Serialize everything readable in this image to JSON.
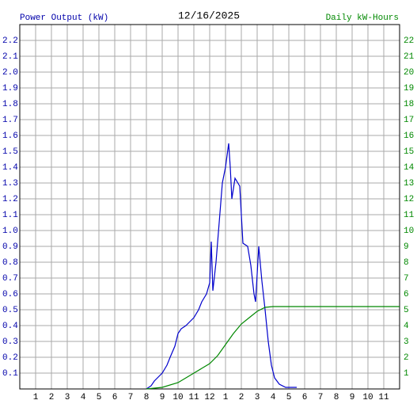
{
  "chart_data": {
    "type": "line",
    "title": "12/16/2025",
    "y_label": "Power Output (kW)",
    "y2_label": "Daily kW-Hours",
    "xlim": [
      0,
      24
    ],
    "xticks": [
      {
        "value": 1,
        "label": "1"
      },
      {
        "value": 2,
        "label": "2"
      },
      {
        "value": 3,
        "label": "3"
      },
      {
        "value": 4,
        "label": "4"
      },
      {
        "value": 5,
        "label": "5"
      },
      {
        "value": 6,
        "label": "6"
      },
      {
        "value": 7,
        "label": "7"
      },
      {
        "value": 8,
        "label": "8"
      },
      {
        "value": 9,
        "label": "9"
      },
      {
        "value": 10,
        "label": "10"
      },
      {
        "value": 11,
        "label": "11"
      },
      {
        "value": 12,
        "label": "12"
      },
      {
        "value": 13,
        "label": "1"
      },
      {
        "value": 14,
        "label": "2"
      },
      {
        "value": 15,
        "label": "3"
      },
      {
        "value": 16,
        "label": "4"
      },
      {
        "value": 17,
        "label": "5"
      },
      {
        "value": 18,
        "label": "6"
      },
      {
        "value": 19,
        "label": "7"
      },
      {
        "value": 20,
        "label": "8"
      },
      {
        "value": 21,
        "label": "9"
      },
      {
        "value": 22,
        "label": "10"
      },
      {
        "value": 23,
        "label": "11"
      }
    ],
    "ylim": [
      0,
      2.3
    ],
    "yticks": [
      0.1,
      0.2,
      0.3,
      0.4,
      0.5,
      0.6,
      0.7,
      0.8,
      0.9,
      {
        "value": 1,
        "label": "1.0"
      },
      1.1,
      1.2,
      1.3,
      1.4,
      1.5,
      1.6,
      1.7,
      1.8,
      1.9,
      {
        "value": 2,
        "label": "2.0"
      },
      2.1,
      2.2
    ],
    "y2lim": [
      0,
      23
    ],
    "y2ticks": [
      1,
      2,
      3,
      4,
      5,
      6,
      7,
      8,
      9,
      10,
      11,
      12,
      13,
      14,
      15,
      16,
      17,
      18,
      19,
      20,
      21,
      22
    ],
    "grid": true,
    "series": [
      {
        "name": "Power Output (kW)",
        "color": "#0000cc",
        "x": [
          8.0,
          8.3,
          8.5,
          8.8,
          9.0,
          9.3,
          9.5,
          9.8,
          10.0,
          10.2,
          10.5,
          10.8,
          11.0,
          11.3,
          11.5,
          11.8,
          12.0,
          12.1,
          12.2,
          12.4,
          12.6,
          12.8,
          13.0,
          13.2,
          13.3,
          13.4,
          13.6,
          13.9,
          14.1,
          14.4,
          14.6,
          14.8,
          14.9,
          15.1,
          15.3,
          15.5,
          15.7,
          15.9,
          16.1,
          16.4,
          16.8,
          17.5
        ],
        "values": [
          0,
          0.02,
          0.05,
          0.08,
          0.1,
          0.15,
          0.2,
          0.27,
          0.35,
          0.38,
          0.4,
          0.43,
          0.45,
          0.5,
          0.55,
          0.6,
          0.67,
          0.93,
          0.62,
          0.8,
          1.05,
          1.3,
          1.4,
          1.55,
          1.4,
          1.2,
          1.33,
          1.28,
          0.92,
          0.9,
          0.78,
          0.6,
          0.55,
          0.9,
          0.68,
          0.5,
          0.3,
          0.15,
          0.07,
          0.03,
          0.01,
          0.01
        ]
      },
      {
        "name": "Daily kW-Hours",
        "color": "#008800",
        "axis": "y2",
        "x": [
          8.0,
          9.0,
          10.0,
          10.5,
          11.0,
          11.5,
          12.0,
          12.5,
          13.0,
          13.5,
          14.0,
          14.5,
          15.0,
          15.5,
          16.0,
          17.0,
          24.0
        ],
        "values": [
          0,
          0.1,
          0.4,
          0.7,
          1.0,
          1.3,
          1.6,
          2.1,
          2.8,
          3.5,
          4.1,
          4.5,
          4.9,
          5.15,
          5.2,
          5.2,
          5.2
        ]
      }
    ]
  }
}
